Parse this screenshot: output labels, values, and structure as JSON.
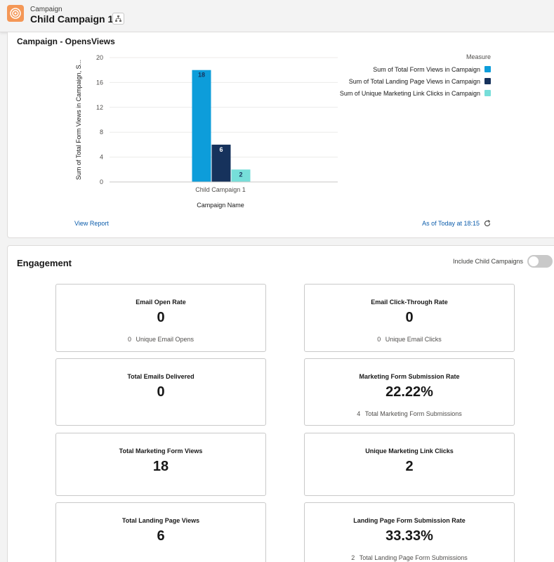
{
  "header": {
    "object_type": "Campaign",
    "title": "Child Campaign 1",
    "icon": "campaign-target-icon",
    "hierarchy_icon": "hierarchy-icon"
  },
  "chart_card": {
    "title": "Campaign - OpensViews",
    "view_report": "View Report",
    "as_of": "As of Today at 18:15",
    "refresh_icon": "refresh-icon"
  },
  "chart_data": {
    "type": "bar",
    "title": "Campaign - OpensViews",
    "categories": [
      "Child Campaign 1"
    ],
    "series": [
      {
        "name": "Sum of Total Form Views in Campaign",
        "values": [
          18
        ],
        "color": "#0d9dda"
      },
      {
        "name": "Sum of Total Landing Page Views in Campaign",
        "values": [
          6
        ],
        "color": "#16325c"
      },
      {
        "name": "Sum of Unique Marketing Link Clicks in Campaign",
        "values": [
          2
        ],
        "color": "#76ded9"
      }
    ],
    "xlabel": "Campaign Name",
    "ylabel": "Sum of Total Form Views in Campaign, S...",
    "yticks": [
      0,
      4,
      8,
      12,
      16,
      20
    ],
    "ylim": [
      0,
      20
    ],
    "legend_title": "Measure",
    "legend_position": "top-right",
    "grid": true
  },
  "engagement": {
    "title": "Engagement",
    "toggle_label": "Include Child Campaigns",
    "toggle_on": false,
    "metrics": [
      {
        "label": "Email Open Rate",
        "value": "0",
        "sub_count": "0",
        "sub_label": "Unique Email Opens"
      },
      {
        "label": "Email Click-Through Rate",
        "value": "0",
        "sub_count": "0",
        "sub_label": "Unique Email Clicks"
      },
      {
        "label": "Total Emails Delivered",
        "value": "0",
        "sub_count": "",
        "sub_label": ""
      },
      {
        "label": "Marketing Form Submission Rate",
        "value": "22.22%",
        "sub_count": "4",
        "sub_label": "Total Marketing Form Submissions"
      },
      {
        "label": "Total Marketing Form Views",
        "value": "18",
        "sub_count": "",
        "sub_label": ""
      },
      {
        "label": "Unique Marketing Link Clicks",
        "value": "2",
        "sub_count": "",
        "sub_label": ""
      },
      {
        "label": "Total Landing Page Views",
        "value": "6",
        "sub_count": "",
        "sub_label": ""
      },
      {
        "label": "Landing Page Form Submission Rate",
        "value": "33.33%",
        "sub_count": "2",
        "sub_label": "Total Landing Page Form Submissions"
      }
    ]
  }
}
